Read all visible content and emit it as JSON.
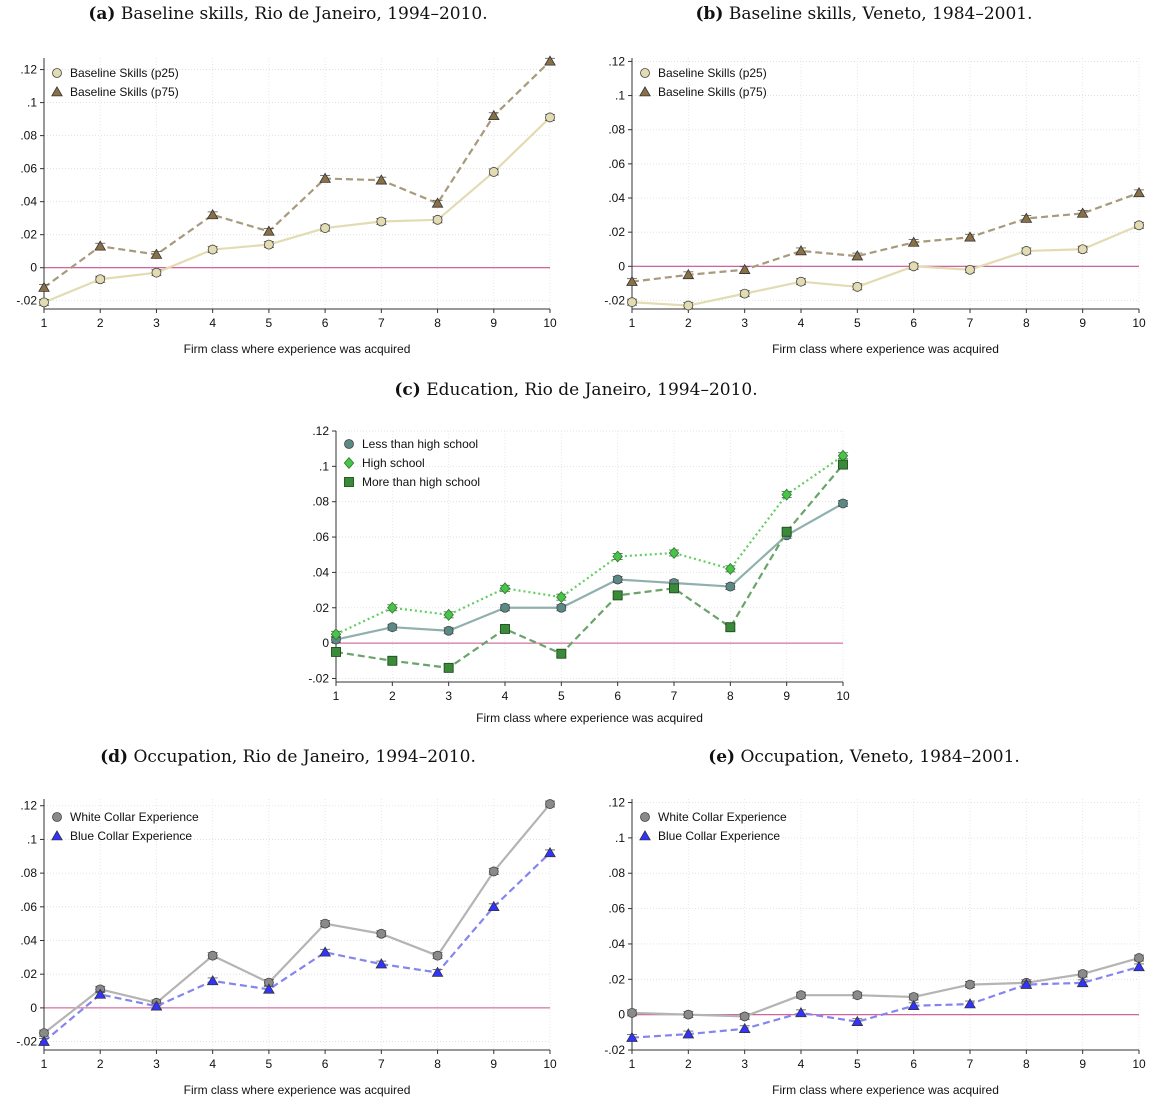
{
  "chart_data": [
    {
      "id": "a",
      "type": "line",
      "label": "(a)",
      "title": "Baseline skills, Rio de Janeiro, 1994–2010.",
      "xlabel": "Firm class where experience was acquired",
      "ylabel": "",
      "x": [
        1,
        2,
        3,
        4,
        5,
        6,
        7,
        8,
        9,
        10
      ],
      "xlim": [
        1,
        10
      ],
      "ylim": [
        -0.025,
        0.127
      ],
      "yticks": [
        -0.02,
        0,
        0.02,
        0.04,
        0.06,
        0.08,
        0.1,
        0.12
      ],
      "ytick_labels": [
        "-.02",
        "0",
        ".02",
        ".04",
        ".06",
        ".08",
        ".1",
        ".12"
      ],
      "legend": "top-left",
      "grid": true,
      "series": [
        {
          "name": "Baseline Skills (p25)",
          "marker": "circle",
          "dash": "solid",
          "color": "#e3dbb1",
          "values": [
            -0.021,
            -0.007,
            -0.003,
            0.011,
            0.014,
            0.024,
            0.028,
            0.029,
            0.058,
            0.091
          ]
        },
        {
          "name": "Baseline Skills (p75)",
          "marker": "triangle",
          "dash": "dashed",
          "color": "#a89a7c",
          "marker_color": "#8a7046",
          "values": [
            -0.012,
            0.013,
            0.008,
            0.032,
            0.022,
            0.054,
            0.053,
            0.039,
            0.092,
            0.125
          ]
        }
      ]
    },
    {
      "id": "b",
      "type": "line",
      "label": "(b)",
      "title": "Baseline skills, Veneto, 1984–2001.",
      "xlabel": "Firm class where experience was acquired",
      "ylabel": "",
      "x": [
        1,
        2,
        3,
        4,
        5,
        6,
        7,
        8,
        9,
        10
      ],
      "xlim": [
        1,
        10
      ],
      "ylim": [
        -0.025,
        0.122
      ],
      "yticks": [
        -0.02,
        0,
        0.02,
        0.04,
        0.06,
        0.08,
        0.1,
        0.12
      ],
      "ytick_labels": [
        "-.02",
        "0",
        ".02",
        ".04",
        ".06",
        ".08",
        ".1",
        ".12"
      ],
      "legend": "top-left",
      "grid": true,
      "series": [
        {
          "name": "Baseline Skills (p25)",
          "marker": "circle",
          "dash": "solid",
          "color": "#e3dbb1",
          "values": [
            -0.021,
            -0.023,
            -0.016,
            -0.009,
            -0.012,
            0.0,
            -0.002,
            0.009,
            0.01,
            0.024
          ]
        },
        {
          "name": "Baseline Skills (p75)",
          "marker": "triangle",
          "dash": "dashed",
          "color": "#a89a7c",
          "marker_color": "#8a7046",
          "values": [
            -0.009,
            -0.005,
            -0.002,
            0.009,
            0.006,
            0.014,
            0.017,
            0.028,
            0.031,
            0.043
          ]
        }
      ]
    },
    {
      "id": "c",
      "type": "line",
      "label": "(c)",
      "title": "Education, Rio de Janeiro, 1994–2010.",
      "xlabel": "Firm class where experience was acquired",
      "ylabel": "",
      "x": [
        1,
        2,
        3,
        4,
        5,
        6,
        7,
        8,
        9,
        10
      ],
      "xlim": [
        1,
        10
      ],
      "ylim": [
        -0.022,
        0.12
      ],
      "yticks": [
        -0.02,
        0,
        0.02,
        0.04,
        0.06,
        0.08,
        0.1,
        0.12
      ],
      "ytick_labels": [
        "-.02",
        "0",
        ".02",
        ".04",
        ".06",
        ".08",
        ".1",
        ".12"
      ],
      "legend": "top-left",
      "grid": true,
      "series": [
        {
          "name": "Less than high school",
          "marker": "circle",
          "dash": "solid",
          "color": "#8fb0ac",
          "marker_color": "#5b8a86",
          "values": [
            0.002,
            0.009,
            0.007,
            0.02,
            0.02,
            0.036,
            0.034,
            0.032,
            0.061,
            0.079
          ]
        },
        {
          "name": "High school",
          "marker": "diamond",
          "dash": "dotted",
          "color": "#5fcf5f",
          "marker_color": "#49c449",
          "values": [
            0.005,
            0.02,
            0.016,
            0.031,
            0.026,
            0.049,
            0.051,
            0.042,
            0.084,
            0.106
          ]
        },
        {
          "name": "More than high school",
          "marker": "square",
          "dash": "dashed",
          "color": "#6aa46a",
          "marker_color": "#3a8a3a",
          "values": [
            -0.005,
            -0.01,
            -0.014,
            0.008,
            -0.006,
            0.027,
            0.031,
            0.009,
            0.063,
            0.101
          ]
        }
      ]
    },
    {
      "id": "d",
      "type": "line",
      "label": "(d)",
      "title": "Occupation, Rio de Janeiro, 1994–2010.",
      "xlabel": "Firm class where experience was acquired",
      "ylabel": "",
      "x": [
        1,
        2,
        3,
        4,
        5,
        6,
        7,
        8,
        9,
        10
      ],
      "xlim": [
        1,
        10
      ],
      "ylim": [
        -0.025,
        0.124
      ],
      "yticks": [
        -0.02,
        0,
        0.02,
        0.04,
        0.06,
        0.08,
        0.1,
        0.12
      ],
      "ytick_labels": [
        "-.02",
        "0",
        ".02",
        ".04",
        ".06",
        ".08",
        ".1",
        ".12"
      ],
      "legend": "top-left",
      "grid": true,
      "series": [
        {
          "name": "White Collar Experience",
          "marker": "circle",
          "dash": "solid",
          "color": "#b4b4b4",
          "marker_color": "#8a8a8a",
          "values": [
            -0.015,
            0.011,
            0.003,
            0.031,
            0.015,
            0.05,
            0.044,
            0.031,
            0.081,
            0.121
          ]
        },
        {
          "name": "Blue Collar Experience",
          "marker": "triangle",
          "dash": "dashed",
          "color": "#8585f0",
          "marker_color": "#3333ff",
          "values": [
            -0.02,
            0.008,
            0.001,
            0.016,
            0.011,
            0.033,
            0.026,
            0.021,
            0.06,
            0.092
          ]
        }
      ]
    },
    {
      "id": "e",
      "type": "line",
      "label": "(e)",
      "title": "Occupation, Veneto, 1984–2001.",
      "xlabel": "Firm class where experience was acquired",
      "ylabel": "",
      "x": [
        1,
        2,
        3,
        4,
        5,
        6,
        7,
        8,
        9,
        10
      ],
      "xlim": [
        1,
        10
      ],
      "ylim": [
        -0.02,
        0.122
      ],
      "yticks": [
        -0.02,
        0,
        0.02,
        0.04,
        0.06,
        0.08,
        0.1,
        0.12
      ],
      "ytick_labels": [
        "-.02",
        "0",
        ".02",
        ".04",
        ".06",
        ".08",
        ".1",
        ".12"
      ],
      "legend": "top-left",
      "grid": true,
      "series": [
        {
          "name": "White Collar Experience",
          "marker": "circle",
          "dash": "solid",
          "color": "#b4b4b4",
          "marker_color": "#8a8a8a",
          "values": [
            0.001,
            0.0,
            -0.001,
            0.011,
            0.011,
            0.01,
            0.017,
            0.018,
            0.023,
            0.032
          ]
        },
        {
          "name": "Blue Collar Experience",
          "marker": "triangle",
          "dash": "dashed",
          "color": "#8585f0",
          "marker_color": "#3333ff",
          "values": [
            -0.013,
            -0.011,
            -0.008,
            0.001,
            -0.004,
            0.005,
            0.006,
            0.017,
            0.018,
            0.027
          ]
        }
      ]
    }
  ]
}
